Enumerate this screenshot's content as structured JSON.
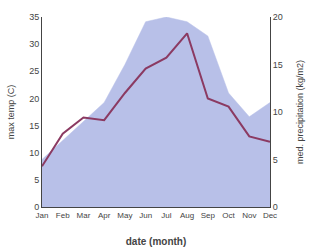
{
  "chart_data": {
    "type": "line",
    "categories": [
      "Jan",
      "Feb",
      "Mar",
      "Apr",
      "May",
      "Jun",
      "Jul",
      "Aug",
      "Sep",
      "Oct",
      "Nov",
      "Dec"
    ],
    "xlabel": "date (month)",
    "ylabel": "max temp (C)",
    "y2label": "med. precipitation (kg/m2)",
    "series": [
      {
        "type": "area",
        "axis": "y2",
        "color": "#b8c0e8",
        "values": [
          5.0,
          7.0,
          9.0,
          11.0,
          15.0,
          19.5,
          20.0,
          19.5,
          18.0,
          12.0,
          9.5,
          11.0
        ]
      },
      {
        "type": "line",
        "color": "#8B3A62",
        "values": [
          7.5,
          13.5,
          16.5,
          16.0,
          21.0,
          25.5,
          27.5,
          32.0,
          20.0,
          18.5,
          13.0,
          12.0
        ]
      }
    ],
    "ylim": [
      0,
      35
    ],
    "yticks": [
      0,
      5,
      10,
      15,
      20,
      25,
      30,
      35
    ],
    "y2lim": [
      0,
      20
    ],
    "y2ticks": [
      0,
      5,
      10,
      15,
      20
    ],
    "grid": false
  }
}
